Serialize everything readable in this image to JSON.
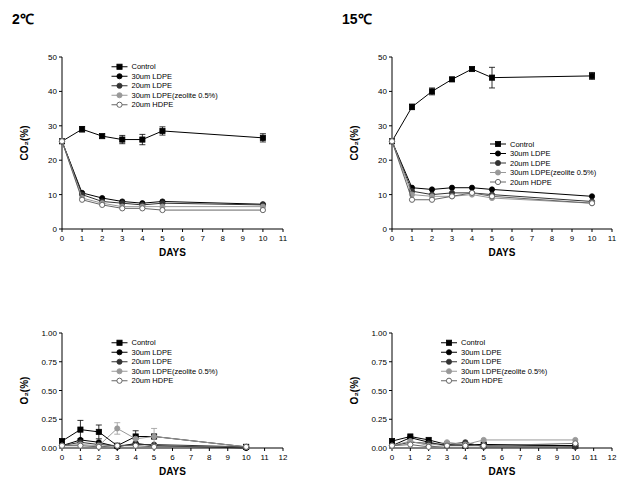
{
  "chart_data": [
    {
      "type": "line",
      "title": "2℃",
      "x_label": "DAYS",
      "y_label": "CO₂(%)",
      "x": [
        0,
        1,
        2,
        3,
        4,
        5,
        10
      ],
      "xlim": [
        0,
        11
      ],
      "xticks": [
        0,
        1,
        2,
        3,
        4,
        5,
        6,
        7,
        8,
        9,
        10,
        11
      ],
      "ylim": [
        0,
        50
      ],
      "yticks": [
        0,
        10,
        20,
        30,
        40,
        50
      ],
      "legend": "upper center",
      "series": [
        {
          "name": "Control",
          "color": "#000000",
          "marker": "square",
          "line_style": "solid",
          "values": [
            25.5,
            29,
            27,
            26,
            26,
            28.5,
            26.5
          ],
          "errors": [
            null,
            0.8,
            null,
            1.2,
            1.5,
            1.2,
            1.2
          ]
        },
        {
          "name": "30um LDPE",
          "color": "#000000",
          "marker": "circle",
          "line_style": "solid",
          "values": [
            25.5,
            10.5,
            9,
            8,
            7.5,
            8,
            7.2
          ]
        },
        {
          "name": "20um LDPE",
          "color": "#333333",
          "marker": "circle",
          "line_style": "solid",
          "values": [
            25.5,
            10,
            8,
            7.5,
            7,
            7.5,
            7
          ]
        },
        {
          "name": "30um LDPE(zeolite 0.5%)",
          "color": "#999999",
          "marker": "circle",
          "line_style": "solid",
          "values": [
            25.5,
            9,
            7.5,
            6.5,
            6.5,
            6.5,
            6.5
          ]
        },
        {
          "name": "20um HDPE",
          "color": "#666666",
          "marker": "open_circle",
          "line_style": "solid",
          "values": [
            25.5,
            8.5,
            7,
            6,
            6,
            5.5,
            5.5
          ]
        }
      ]
    },
    {
      "type": "line",
      "title": "15℃",
      "x_label": "DAYS",
      "y_label": "CO₂(%)",
      "x": [
        0,
        1,
        2,
        3,
        4,
        5,
        10
      ],
      "xlim": [
        0,
        11
      ],
      "xticks": [
        0,
        1,
        2,
        3,
        4,
        5,
        6,
        7,
        8,
        9,
        10,
        11
      ],
      "ylim": [
        0,
        50
      ],
      "yticks": [
        0,
        10,
        20,
        30,
        40,
        50
      ],
      "legend": "center right",
      "series": [
        {
          "name": "Control",
          "color": "#000000",
          "marker": "square",
          "line_style": "solid",
          "values": [
            25.5,
            35.5,
            40,
            43.5,
            46.5,
            44,
            44.5
          ],
          "errors": [
            null,
            0.8,
            1,
            0.5,
            0.5,
            3,
            1
          ]
        },
        {
          "name": "30um LDPE",
          "color": "#000000",
          "marker": "circle",
          "line_style": "solid",
          "values": [
            25.5,
            12,
            11.5,
            12,
            12,
            11.5,
            9.5
          ]
        },
        {
          "name": "20um LDPE",
          "color": "#333333",
          "marker": "circle",
          "line_style": "solid",
          "values": [
            25.5,
            11,
            10,
            10.5,
            10.5,
            10,
            8
          ]
        },
        {
          "name": "30um LDPE(zeolite 0.5%)",
          "color": "#999999",
          "marker": "circle",
          "line_style": "solid",
          "values": [
            25.5,
            10,
            9.5,
            9.5,
            10,
            9,
            7.5
          ]
        },
        {
          "name": "20um HDPE",
          "color": "#666666",
          "marker": "open_circle",
          "line_style": "solid",
          "values": [
            25.5,
            8.5,
            8.5,
            9.5,
            10.5,
            9.5,
            7.5
          ]
        }
      ]
    },
    {
      "type": "line",
      "x_label": "DAYS",
      "y_label": "O₂(%)",
      "x": [
        0,
        1,
        2,
        3,
        4,
        5,
        10
      ],
      "xlim": [
        0,
        12
      ],
      "xticks": [
        0,
        1,
        2,
        3,
        4,
        5,
        6,
        7,
        8,
        9,
        10,
        11,
        12
      ],
      "ylim": [
        0,
        1
      ],
      "yticks": [
        {
          "value": 0,
          "label": "0.00"
        },
        {
          "value": 0.25,
          "label": "0.25"
        },
        {
          "value": 0.5,
          "label": "0.50"
        },
        {
          "value": 0.75,
          "label": "0.75"
        },
        {
          "value": 1,
          "label": "1.00"
        }
      ],
      "legend": "upper center",
      "series": [
        {
          "name": "Control",
          "color": "#000000",
          "marker": "square",
          "line_style": "solid",
          "values": [
            0.06,
            0.16,
            0.14,
            0.02,
            0.1,
            0.1,
            0.01
          ],
          "errors": [
            null,
            0.08,
            0.06,
            null,
            0.05,
            null,
            null
          ]
        },
        {
          "name": "30um LDPE",
          "color": "#000000",
          "marker": "circle",
          "line_style": "solid",
          "values": [
            0.02,
            0.07,
            0.05,
            0.01,
            0.04,
            0.02,
            0
          ]
        },
        {
          "name": "20um LDPE",
          "color": "#333333",
          "marker": "circle",
          "line_style": "solid",
          "values": [
            0.02,
            0.05,
            0.03,
            0.02,
            0.03,
            0.03,
            0.01
          ]
        },
        {
          "name": "30um LDPE(zeolite 0.5%)",
          "color": "#999999",
          "marker": "circle",
          "line_style": "solid",
          "values": [
            0.02,
            0.03,
            0.02,
            0.17,
            0.08,
            0.1,
            0.01
          ],
          "errors": [
            null,
            null,
            null,
            0.05,
            null,
            0.07,
            null
          ]
        },
        {
          "name": "20um HDPE",
          "color": "#666666",
          "marker": "open_circle",
          "line_style": "solid",
          "values": [
            0.02,
            0.02,
            0.01,
            0.02,
            0.02,
            0.01,
            0.01
          ]
        }
      ]
    },
    {
      "type": "line",
      "x_label": "DAYS",
      "y_label": "O₂(%)",
      "x": [
        0,
        1,
        2,
        3,
        4,
        5,
        10
      ],
      "xlim": [
        0,
        12
      ],
      "xticks": [
        0,
        1,
        2,
        3,
        4,
        5,
        6,
        7,
        8,
        9,
        10,
        11,
        12
      ],
      "ylim": [
        0,
        1
      ],
      "yticks": [
        {
          "value": 0,
          "label": "0.00"
        },
        {
          "value": 0.25,
          "label": "0.25"
        },
        {
          "value": 0.5,
          "label": "0.50"
        },
        {
          "value": 0.75,
          "label": "0.75"
        },
        {
          "value": 1,
          "label": "1.00"
        }
      ],
      "legend": "upper center",
      "series": [
        {
          "name": "Control",
          "color": "#000000",
          "marker": "square",
          "line_style": "solid",
          "values": [
            0.06,
            0.1,
            0.07,
            0.03,
            0.02,
            0.03,
            0.02
          ]
        },
        {
          "name": "30um LDPE",
          "color": "#000000",
          "marker": "circle",
          "line_style": "solid",
          "values": [
            0.02,
            0.09,
            0.05,
            0.02,
            0.03,
            0.03,
            0.02
          ]
        },
        {
          "name": "20um LDPE",
          "color": "#333333",
          "marker": "circle",
          "line_style": "solid",
          "values": [
            0.02,
            0.05,
            0.04,
            0.03,
            0.05,
            0.01,
            0.01
          ]
        },
        {
          "name": "30um LDPE(zeolite 0.5%)",
          "color": "#999999",
          "marker": "circle",
          "line_style": "solid",
          "values": [
            0.02,
            0.06,
            0.02,
            0.05,
            0.03,
            0.07,
            0.07
          ]
        },
        {
          "name": "20um HDPE",
          "color": "#666666",
          "marker": "open_circle",
          "line_style": "solid",
          "values": [
            0.02,
            0.03,
            0.01,
            0.02,
            0.02,
            0.02,
            0.04
          ]
        }
      ]
    }
  ]
}
